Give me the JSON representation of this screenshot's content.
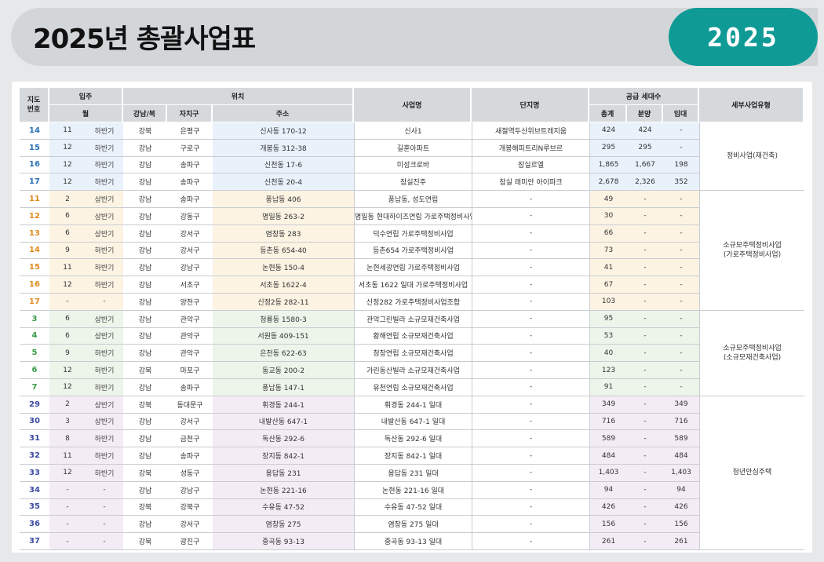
{
  "title": "2025년 총괄사업표",
  "year_badge": "2025",
  "colors": {
    "accent": "#0f9a96",
    "header_bg": "#d3d6d8",
    "blue": "#2a6fb5",
    "orange": "#e08a1e",
    "green": "#3a9a4a",
    "navy": "#3b4aa0"
  },
  "table": {
    "headers": {
      "map_no": "지도\n번호",
      "move_in": "입주",
      "month": "월",
      "location": "위치",
      "gangnam_buk": "강남/북",
      "district": "자치구",
      "address": "주소",
      "project": "사업명",
      "complex": "단지명",
      "supply": "공급 세대수",
      "total": "총계",
      "sale": "분양",
      "rent": "임대",
      "type": "세부사업유형"
    },
    "groups": [
      {
        "type": "정비사업(재건축)",
        "rows": [
          {
            "no": "14",
            "month": "11",
            "half": "하반기",
            "gb": "강북",
            "gu": "은평구",
            "addr": "신사동 170-12",
            "name": "신사1",
            "complex": "새절역두산위브트레지움",
            "total": "424",
            "sale": "424",
            "rent": "-"
          },
          {
            "no": "15",
            "month": "12",
            "half": "하반기",
            "gb": "강남",
            "gu": "구로구",
            "addr": "개봉동 312-38",
            "name": "길훈아파트",
            "complex": "개봉해피트리N루브르",
            "total": "295",
            "sale": "295",
            "rent": "-"
          },
          {
            "no": "16",
            "month": "12",
            "half": "하반기",
            "gb": "강남",
            "gu": "송파구",
            "addr": "신천동 17-6",
            "name": "미성크로바",
            "complex": "잠실르엘",
            "total": "1,865",
            "sale": "1,667",
            "rent": "198"
          },
          {
            "no": "17",
            "month": "12",
            "half": "하반기",
            "gb": "강남",
            "gu": "송파구",
            "addr": "신천동 20-4",
            "name": "잠실진주",
            "complex": "잠실 래미안 아이파크",
            "total": "2,678",
            "sale": "2,326",
            "rent": "352"
          }
        ]
      },
      {
        "type": "소규모주택정비사업\n(가로주택정비사업)",
        "rows": [
          {
            "no": "11",
            "month": "2",
            "half": "상반기",
            "gb": "강남",
            "gu": "송파구",
            "addr": "풍납동 406",
            "name": "풍납동, 성도연립",
            "complex": "-",
            "total": "49",
            "sale": "-",
            "rent": "-"
          },
          {
            "no": "12",
            "month": "6",
            "half": "상반기",
            "gb": "강남",
            "gu": "강동구",
            "addr": "명일동 263-2",
            "name": "명일동 현대하이츠연립 가로주택정비사업",
            "complex": "-",
            "total": "30",
            "sale": "-",
            "rent": "-"
          },
          {
            "no": "13",
            "month": "6",
            "half": "상반기",
            "gb": "강남",
            "gu": "강서구",
            "addr": "염창동 283",
            "name": "덕수연립 가로주택정비사업",
            "complex": "-",
            "total": "66",
            "sale": "-",
            "rent": "-"
          },
          {
            "no": "14",
            "month": "9",
            "half": "하반기",
            "gb": "강남",
            "gu": "강서구",
            "addr": "등촌동 654-40",
            "name": "등촌654 가로주택정비사업",
            "complex": "-",
            "total": "73",
            "sale": "-",
            "rent": "-"
          },
          {
            "no": "15",
            "month": "11",
            "half": "하반기",
            "gb": "강남",
            "gu": "강남구",
            "addr": "논현동 150-4",
            "name": "논현세광연립 가로주택정비사업",
            "complex": "-",
            "total": "41",
            "sale": "-",
            "rent": "-"
          },
          {
            "no": "16",
            "month": "12",
            "half": "하반기",
            "gb": "강남",
            "gu": "서초구",
            "addr": "서초동 1622-4",
            "name": "서초동 1622 일대 가로주택정비사업",
            "complex": "-",
            "total": "67",
            "sale": "-",
            "rent": "-"
          },
          {
            "no": "17",
            "month": "-",
            "half": "-",
            "gb": "강남",
            "gu": "양천구",
            "addr": "신정2동 282-11",
            "name": "신정282 가로주택정비사업조합",
            "complex": "-",
            "total": "103",
            "sale": "-",
            "rent": "-"
          }
        ]
      },
      {
        "type": "소규모주택정비사업\n(소규모재건축사업)",
        "rows": [
          {
            "no": "3",
            "month": "6",
            "half": "상반기",
            "gb": "강남",
            "gu": "관악구",
            "addr": "청룡동 1580-3",
            "name": "관악그린빌라 소규모재건축사업",
            "complex": "-",
            "total": "95",
            "sale": "-",
            "rent": "-"
          },
          {
            "no": "4",
            "month": "6",
            "half": "상반기",
            "gb": "강남",
            "gu": "관악구",
            "addr": "서원동 409-151",
            "name": "황해연립 소규모재건축사업",
            "complex": "-",
            "total": "53",
            "sale": "-",
            "rent": "-"
          },
          {
            "no": "5",
            "month": "9",
            "half": "하반기",
            "gb": "강남",
            "gu": "관악구",
            "addr": "은천동 622-63",
            "name": "청창연립 소규모재건축사업",
            "complex": "-",
            "total": "40",
            "sale": "-",
            "rent": "-"
          },
          {
            "no": "6",
            "month": "12",
            "half": "하반기",
            "gb": "강북",
            "gu": "마포구",
            "addr": "동교동 200-2",
            "name": "가린동산빌라 소규모재건축사업",
            "complex": "-",
            "total": "123",
            "sale": "-",
            "rent": "-"
          },
          {
            "no": "7",
            "month": "12",
            "half": "하반기",
            "gb": "강남",
            "gu": "송파구",
            "addr": "풍납동 147-1",
            "name": "유천연립 소규모재건축사업",
            "complex": "-",
            "total": "91",
            "sale": "-",
            "rent": "-"
          }
        ]
      },
      {
        "type": "청년안심주택",
        "rows": [
          {
            "no": "29",
            "month": "2",
            "half": "상반기",
            "gb": "강북",
            "gu": "동대문구",
            "addr": "휘경동 244-1",
            "name": "휘경동 244-1 일대",
            "complex": "-",
            "total": "349",
            "sale": "-",
            "rent": "349"
          },
          {
            "no": "30",
            "month": "3",
            "half": "상반기",
            "gb": "강남",
            "gu": "강서구",
            "addr": "내발산동 647-1",
            "name": "내발산동 647-1 일대",
            "complex": "-",
            "total": "716",
            "sale": "-",
            "rent": "716"
          },
          {
            "no": "31",
            "month": "8",
            "half": "하반기",
            "gb": "강남",
            "gu": "금천구",
            "addr": "독산동 292-6",
            "name": "독산동 292-6 일대",
            "complex": "-",
            "total": "589",
            "sale": "-",
            "rent": "589"
          },
          {
            "no": "32",
            "month": "11",
            "half": "하반기",
            "gb": "강남",
            "gu": "송파구",
            "addr": "장지동 842-1",
            "name": "장지동 842-1 일대",
            "complex": "-",
            "total": "484",
            "sale": "-",
            "rent": "484"
          },
          {
            "no": "33",
            "month": "12",
            "half": "하반기",
            "gb": "강북",
            "gu": "성동구",
            "addr": "용답동 231",
            "name": "용답동 231 일대",
            "complex": "-",
            "total": "1,403",
            "sale": "-",
            "rent": "1,403"
          },
          {
            "no": "34",
            "month": "-",
            "half": "-",
            "gb": "강남",
            "gu": "강남구",
            "addr": "논현동 221-16",
            "name": "논현동 221-16 일대",
            "complex": "-",
            "total": "94",
            "sale": "-",
            "rent": "94"
          },
          {
            "no": "35",
            "month": "-",
            "half": "-",
            "gb": "강북",
            "gu": "강북구",
            "addr": "수유동 47-52",
            "name": "수유동 47-52 일대",
            "complex": "-",
            "total": "426",
            "sale": "-",
            "rent": "426"
          },
          {
            "no": "36",
            "month": "-",
            "half": "-",
            "gb": "강남",
            "gu": "강서구",
            "addr": "염창동 275",
            "name": "염창동 275 일대",
            "complex": "-",
            "total": "156",
            "sale": "-",
            "rent": "156"
          },
          {
            "no": "37",
            "month": "-",
            "half": "-",
            "gb": "강북",
            "gu": "광진구",
            "addr": "중곡동 93-13",
            "name": "중곡동 93-13 일대",
            "complex": "-",
            "total": "261",
            "sale": "-",
            "rent": "261"
          }
        ]
      }
    ]
  }
}
